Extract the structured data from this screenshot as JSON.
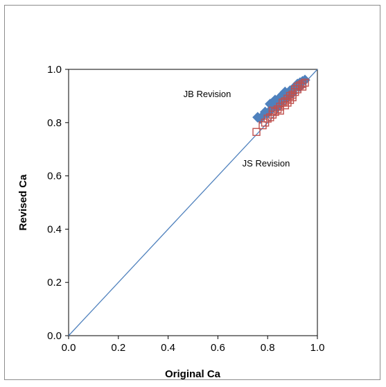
{
  "chart_data": {
    "type": "scatter",
    "title": "",
    "xlabel": "Original Ca",
    "ylabel": "Revised Ca",
    "xlim": [
      0.0,
      1.0
    ],
    "ylim": [
      0.0,
      1.0
    ],
    "x_ticks": [
      "0.0",
      "0.2",
      "0.4",
      "0.6",
      "0.8",
      "1.0"
    ],
    "y_ticks": [
      "0.0",
      "0.2",
      "0.4",
      "0.6",
      "0.8",
      "1.0"
    ],
    "grid": false,
    "legend": "none",
    "reference_line": {
      "type": "1:1",
      "from": [
        0,
        0
      ],
      "to": [
        1,
        1
      ],
      "color": "#4f81bd"
    },
    "annotations": [
      {
        "text": "JB Revision",
        "x": 0.8,
        "y": 0.905
      },
      {
        "text": "JS Revision",
        "x": 0.83,
        "y": 0.635
      }
    ],
    "series": [
      {
        "marker": "diamond-filled",
        "color": "#4f81bd",
        "points": [
          [
            0.76,
            0.82
          ],
          [
            0.77,
            0.815
          ],
          [
            0.78,
            0.825
          ],
          [
            0.79,
            0.84
          ],
          [
            0.8,
            0.835
          ],
          [
            0.81,
            0.845
          ],
          [
            0.81,
            0.87
          ],
          [
            0.82,
            0.875
          ],
          [
            0.82,
            0.855
          ],
          [
            0.83,
            0.865
          ],
          [
            0.83,
            0.885
          ],
          [
            0.84,
            0.88
          ],
          [
            0.85,
            0.895
          ],
          [
            0.85,
            0.875
          ],
          [
            0.86,
            0.885
          ],
          [
            0.86,
            0.905
          ],
          [
            0.87,
            0.9
          ],
          [
            0.87,
            0.915
          ],
          [
            0.88,
            0.91
          ],
          [
            0.89,
            0.92
          ],
          [
            0.9,
            0.925
          ],
          [
            0.91,
            0.935
          ],
          [
            0.92,
            0.945
          ],
          [
            0.93,
            0.95
          ],
          [
            0.94,
            0.955
          ],
          [
            0.95,
            0.96
          ],
          [
            0.93,
            0.935
          ],
          [
            0.9,
            0.91
          ],
          [
            0.88,
            0.895
          ],
          [
            0.84,
            0.86
          ]
        ]
      },
      {
        "marker": "square-open",
        "color": "#c0504d",
        "points": [
          [
            0.755,
            0.765
          ],
          [
            0.78,
            0.79
          ],
          [
            0.79,
            0.8
          ],
          [
            0.8,
            0.815
          ],
          [
            0.81,
            0.82
          ],
          [
            0.82,
            0.83
          ],
          [
            0.82,
            0.845
          ],
          [
            0.83,
            0.84
          ],
          [
            0.84,
            0.85
          ],
          [
            0.85,
            0.86
          ],
          [
            0.85,
            0.845
          ],
          [
            0.86,
            0.875
          ],
          [
            0.87,
            0.88
          ],
          [
            0.87,
            0.865
          ],
          [
            0.88,
            0.89
          ],
          [
            0.89,
            0.9
          ],
          [
            0.89,
            0.885
          ],
          [
            0.9,
            0.905
          ],
          [
            0.91,
            0.915
          ],
          [
            0.91,
            0.925
          ],
          [
            0.92,
            0.925
          ],
          [
            0.92,
            0.935
          ],
          [
            0.93,
            0.94
          ],
          [
            0.94,
            0.945
          ],
          [
            0.94,
            0.935
          ],
          [
            0.95,
            0.95
          ],
          [
            0.88,
            0.875
          ],
          [
            0.9,
            0.895
          ]
        ]
      }
    ]
  }
}
